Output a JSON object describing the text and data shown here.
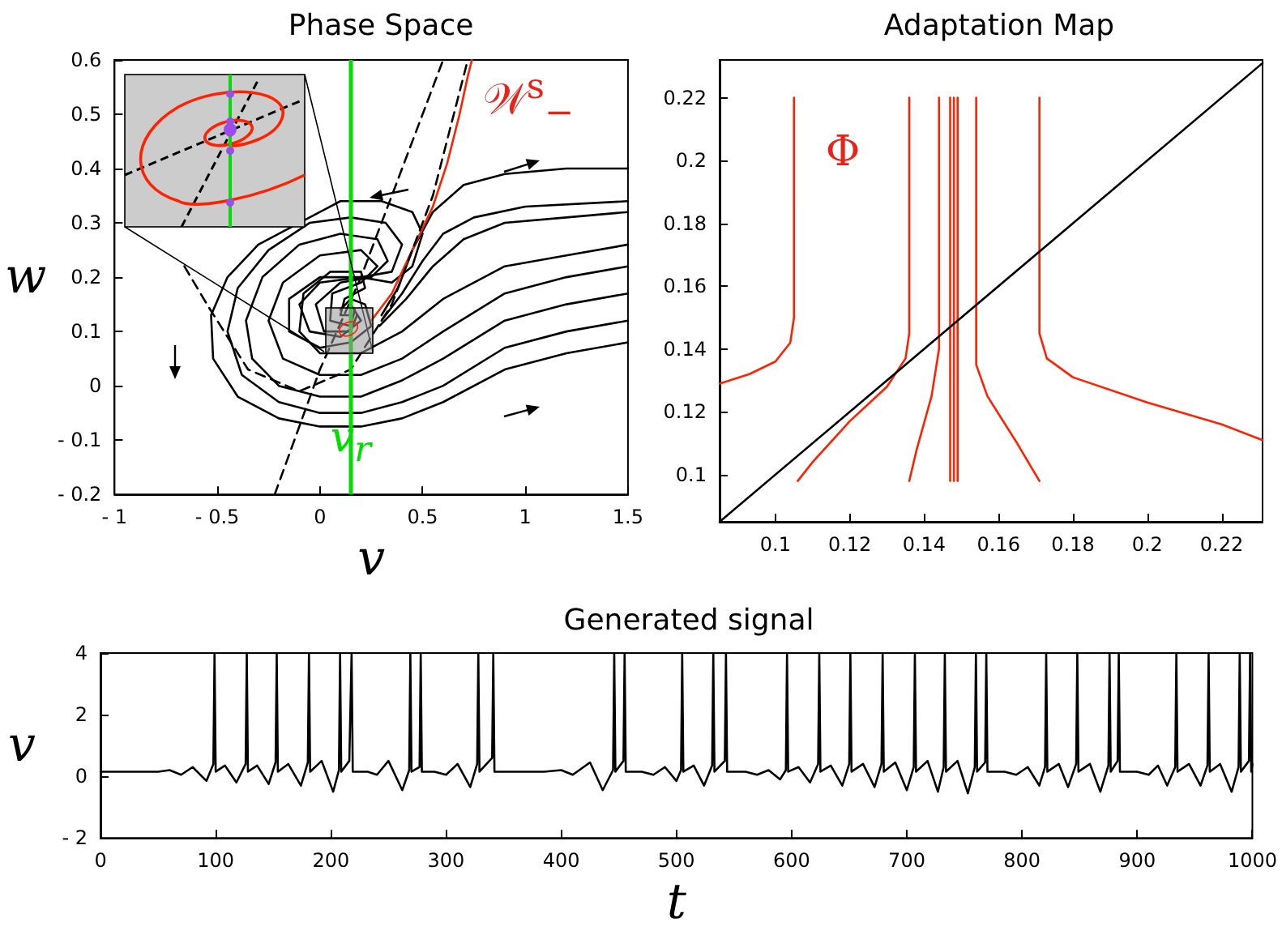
{
  "chart_data": [
    {
      "type": "line",
      "title": "Phase Space",
      "xlabel": "v",
      "ylabel": "w",
      "xlim": [
        -1,
        1.5
      ],
      "ylim": [
        -0.2,
        0.6
      ],
      "xticks": [
        {
          "value": -1,
          "label": "- 1"
        },
        {
          "value": -0.5,
          "label": "- 0.5"
        },
        0,
        0.5,
        1,
        1.5
      ],
      "yticks": [
        {
          "value": -0.2,
          "label": "- 0.2"
        },
        {
          "value": -0.1,
          "label": "- 0.1"
        },
        0,
        0.1,
        0.2,
        0.3,
        0.4,
        0.5,
        0.6
      ],
      "marker": "none",
      "series": [
        {
          "color": "#000000",
          "x": [
            1.5,
            1.2,
            0.9,
            0.6,
            0.4,
            0.2,
            0,
            -0.2,
            -0.4,
            -0.52,
            -0.53,
            -0.45,
            -0.3,
            0,
            0.1,
            0.3,
            0.45,
            0.5,
            0.45,
            0.35,
            0.2,
            0,
            -0.15,
            -0.15,
            0,
            0.15,
            0.25,
            0.22,
            0.15,
            0.1
          ],
          "values": [
            0.08,
            0.06,
            0.03,
            -0.03,
            -0.06,
            -0.075,
            -0.075,
            -0.06,
            -0.02,
            0.05,
            0.13,
            0.2,
            0.26,
            0.32,
            0.34,
            0.34,
            0.32,
            0.28,
            0.22,
            0.19,
            0.2,
            0.2,
            0.16,
            0.1,
            0.07,
            0.08,
            0.11,
            0.15,
            0.16,
            0.14
          ]
        },
        {
          "color": "#000000",
          "x": [
            1.5,
            1.2,
            0.9,
            0.6,
            0.4,
            0.2,
            0,
            -0.2,
            -0.38,
            -0.45,
            -0.4,
            -0.25,
            -0.05,
            0.15,
            0.32,
            0.4,
            0.35,
            0.2,
            0,
            -0.1,
            -0.05,
            0.1,
            0.2,
            0.15
          ],
          "values": [
            0.12,
            0.1,
            0.07,
            0,
            -0.03,
            -0.05,
            -0.05,
            -0.03,
            0.02,
            0.1,
            0.18,
            0.25,
            0.3,
            0.31,
            0.3,
            0.26,
            0.21,
            0.2,
            0.19,
            0.15,
            0.1,
            0.09,
            0.12,
            0.15
          ]
        },
        {
          "color": "#000000",
          "x": [
            1.5,
            1.2,
            0.9,
            0.6,
            0.4,
            0.2,
            0,
            -0.2,
            -0.33,
            -0.36,
            -0.28,
            -0.1,
            0.1,
            0.28,
            0.33,
            0.25,
            0.1,
            -0.02,
            0.02,
            0.15,
            0.18
          ],
          "values": [
            0.17,
            0.15,
            0.12,
            0.05,
            0.01,
            -0.02,
            -0.02,
            0,
            0.05,
            0.12,
            0.2,
            0.26,
            0.28,
            0.27,
            0.23,
            0.2,
            0.19,
            0.15,
            0.1,
            0.1,
            0.13
          ]
        },
        {
          "color": "#000000",
          "x": [
            1.5,
            1.2,
            0.9,
            0.6,
            0.4,
            0.2,
            0,
            -0.18,
            -0.25,
            -0.18,
            0,
            0.2,
            0.28,
            0.2,
            0.06,
            0.05,
            0.15,
            0.17
          ],
          "values": [
            0.22,
            0.2,
            0.17,
            0.1,
            0.05,
            0.02,
            0.02,
            0.05,
            0.12,
            0.19,
            0.24,
            0.25,
            0.22,
            0.19,
            0.17,
            0.12,
            0.11,
            0.14
          ]
        },
        {
          "color": "#000000",
          "x": [
            1.5,
            1.2,
            0.9,
            0.6,
            0.4,
            0.2,
            0,
            -0.1,
            -0.08,
            0.05,
            0.2,
            0.22,
            0.12,
            0.1,
            0.16
          ],
          "values": [
            0.26,
            0.24,
            0.22,
            0.16,
            0.1,
            0.06,
            0.06,
            0.1,
            0.17,
            0.21,
            0.21,
            0.18,
            0.16,
            0.13,
            0.13
          ]
        },
        {
          "color": "#000000",
          "x": [
            0.3,
            0.38,
            0.45,
            0.55,
            0.7,
            0.9,
            1.2,
            1.5
          ],
          "values": [
            0.13,
            0.18,
            0.25,
            0.32,
            0.37,
            0.39,
            0.4,
            0.4
          ]
        },
        {
          "color": "#000000",
          "x": [
            0.3,
            0.4,
            0.5,
            0.6,
            0.75,
            1.0,
            1.5
          ],
          "values": [
            0.12,
            0.17,
            0.23,
            0.28,
            0.31,
            0.33,
            0.34
          ]
        },
        {
          "color": "#000000",
          "x": [
            0.29,
            0.42,
            0.55,
            0.7,
            0.9,
            1.2,
            1.5
          ],
          "values": [
            0.11,
            0.16,
            0.22,
            0.27,
            0.3,
            0.31,
            0.32
          ]
        },
        {
          "color": "#ff2200",
          "x": [
            0.25,
            0.35,
            0.45,
            0.55,
            0.62,
            0.68,
            0.72,
            0.74
          ],
          "values": [
            0.12,
            0.17,
            0.25,
            0.33,
            0.41,
            0.5,
            0.57,
            0.6
          ]
        },
        {
          "color": "#000000",
          "line_style": "dashed",
          "x": [
            -0.22,
            0,
            0.2,
            0.4,
            0.6
          ],
          "values": [
            -0.2,
            0.03,
            0.2,
            0.4,
            0.6
          ]
        },
        {
          "color": "#000000",
          "line_style": "dashed",
          "x": [
            -0.66,
            -0.55,
            -0.35,
            -0.1,
            0.15,
            0.35,
            0.55,
            0.72
          ],
          "values": [
            0.22,
            0.15,
            0.03,
            -0.01,
            0.03,
            0.15,
            0.35,
            0.6
          ]
        }
      ],
      "ref_lines": [
        {
          "axis": "x",
          "value": 0.15,
          "label": "v$_{r}$",
          "color": "#00dd00"
        }
      ],
      "annotations": [
        "𝒲$^{s}$$_{−}$"
      ]
    },
    {
      "type": "line",
      "title": "Adaptation Map",
      "xlim": [
        0.085,
        0.231
      ],
      "ylim": [
        0.085,
        0.232
      ],
      "xticks": [
        0.1,
        0.12,
        0.14,
        0.16,
        0.18,
        0.2,
        0.22
      ],
      "yticks": [
        0.1,
        0.12,
        0.14,
        0.16,
        0.18,
        0.2,
        0.22
      ],
      "marker": "none",
      "series": [
        {
          "color": "#ff2200",
          "x": [
            0.105,
            0.105,
            0.104,
            0.1,
            0.093,
            0.085
          ],
          "values": [
            0.22,
            0.15,
            0.142,
            0.136,
            0.132,
            0.129
          ]
        },
        {
          "color": "#ff2200",
          "x": [
            0.136,
            0.136,
            0.135,
            0.13,
            0.12,
            0.11,
            0.106
          ],
          "values": [
            0.22,
            0.145,
            0.137,
            0.128,
            0.117,
            0.104,
            0.098
          ]
        },
        {
          "color": "#ff2200",
          "x": [
            0.144,
            0.144,
            0.142,
            0.138,
            0.136
          ],
          "values": [
            0.22,
            0.14,
            0.125,
            0.108,
            0.098
          ]
        },
        {
          "color": "#ff2200",
          "x": [
            0.147,
            0.147
          ],
          "values": [
            0.22,
            0.098
          ]
        },
        {
          "color": "#ff2200",
          "x": [
            0.148,
            0.148
          ],
          "values": [
            0.22,
            0.098
          ]
        },
        {
          "color": "#ff2200",
          "x": [
            0.149,
            0.149
          ],
          "values": [
            0.22,
            0.098
          ]
        },
        {
          "color": "#ff2200",
          "x": [
            0.154,
            0.154,
            0.157,
            0.165,
            0.17,
            0.171
          ],
          "values": [
            0.22,
            0.135,
            0.125,
            0.11,
            0.1,
            0.098
          ]
        },
        {
          "color": "#ff2200",
          "x": [
            0.171,
            0.171,
            0.173,
            0.18,
            0.2,
            0.22,
            0.231
          ],
          "values": [
            0.22,
            0.145,
            0.137,
            0.131,
            0.123,
            0.116,
            0.111
          ]
        },
        {
          "color": "#000000",
          "x": [
            0.085,
            0.231
          ],
          "values": [
            0.085,
            0.231
          ]
        }
      ],
      "annotations": [
        "Φ"
      ]
    },
    {
      "type": "line",
      "title": "Generated signal",
      "xlabel": "t",
      "ylabel": "v",
      "xlim": [
        0,
        1000
      ],
      "ylim": [
        -2,
        4
      ],
      "xticks": [
        0,
        100,
        200,
        300,
        400,
        500,
        600,
        700,
        800,
        900,
        1000
      ],
      "yticks": [
        {
          "value": -2,
          "label": "- 2"
        },
        0,
        2,
        4
      ],
      "marker": "none",
      "series": [
        {
          "color": "#000000",
          "x": [
            0,
            50,
            60,
            70,
            80,
            92,
            98,
            99,
            100,
            108,
            118,
            126,
            127,
            128,
            136,
            146,
            152,
            153,
            154,
            163,
            174,
            180,
            181,
            182,
            192,
            202,
            207,
            208,
            209,
            216,
            218,
            219,
            232,
            240,
            250,
            262,
            268,
            269,
            270,
            277,
            278,
            279,
            290,
            300,
            310,
            321,
            327,
            328,
            329,
            340,
            341,
            342,
            385,
            400,
            410,
            425,
            436,
            445,
            446,
            447,
            454,
            455,
            456,
            470,
            480,
            490,
            500,
            504,
            505,
            506,
            515,
            524,
            531,
            532,
            533,
            542,
            543,
            544,
            560,
            570,
            580,
            590,
            595,
            596,
            597,
            606,
            616,
            623,
            624,
            625,
            634,
            644,
            650,
            651,
            652,
            662,
            672,
            678,
            679,
            680,
            690,
            700,
            706,
            707,
            708,
            718,
            727,
            732,
            733,
            734,
            744,
            753,
            759,
            760,
            761,
            768,
            769,
            770,
            785,
            795,
            805,
            815,
            820,
            821,
            822,
            832,
            840,
            847,
            848,
            849,
            859,
            868,
            875,
            876,
            877,
            883,
            884,
            885,
            900,
            910,
            918,
            926,
            933,
            934,
            935,
            945,
            955,
            961,
            962,
            963,
            972,
            982,
            988,
            989,
            990,
            997,
            998,
            999,
            1000
          ],
          "values": [
            0.15,
            0.15,
            0.2,
            0.05,
            0.3,
            -0.15,
            0.4,
            4,
            0.15,
            0.35,
            -0.2,
            0.4,
            4,
            0.15,
            0.35,
            -0.25,
            0.45,
            4,
            0.15,
            0.4,
            -0.3,
            0.45,
            4,
            0.15,
            0.5,
            -0.5,
            0.2,
            4,
            0.15,
            0.5,
            4,
            0.15,
            0.15,
            0.05,
            0.5,
            -0.45,
            0.2,
            4,
            0.15,
            0.3,
            4,
            0.15,
            0.15,
            0.05,
            0.4,
            -0.35,
            0.4,
            4,
            0.15,
            0.6,
            4,
            0.15,
            0.15,
            0.2,
            0.05,
            0.45,
            -0.45,
            0.2,
            4,
            0.15,
            0.5,
            4,
            0.15,
            0.15,
            0.05,
            0.3,
            -0.15,
            0.2,
            4,
            0.15,
            0.35,
            -0.3,
            0.35,
            4,
            0.15,
            0.5,
            4,
            0.15,
            0.15,
            0.05,
            0.2,
            -0.1,
            0.2,
            4,
            0.15,
            0.3,
            -0.2,
            0.4,
            4,
            0.15,
            0.35,
            -0.3,
            0.4,
            4,
            0.15,
            0.4,
            -0.35,
            0.4,
            4,
            0.15,
            0.45,
            -0.45,
            0.3,
            4,
            0.15,
            0.5,
            -0.5,
            0.3,
            4,
            0.15,
            0.5,
            -0.55,
            0.3,
            4,
            0.15,
            0.45,
            4,
            0.15,
            0.15,
            0.05,
            0.3,
            -0.3,
            0.3,
            4,
            0.15,
            0.4,
            -0.35,
            0.4,
            4,
            0.15,
            0.4,
            -0.5,
            0.35,
            4,
            0.15,
            0.5,
            4,
            0.15,
            0.15,
            0.05,
            0.35,
            -0.3,
            0.3,
            4,
            0.15,
            0.4,
            -0.3,
            0.35,
            4,
            0.15,
            0.4,
            -0.5,
            0.3,
            4,
            0.15,
            0.5,
            4,
            0.15,
            0.4
          ]
        }
      ]
    }
  ]
}
